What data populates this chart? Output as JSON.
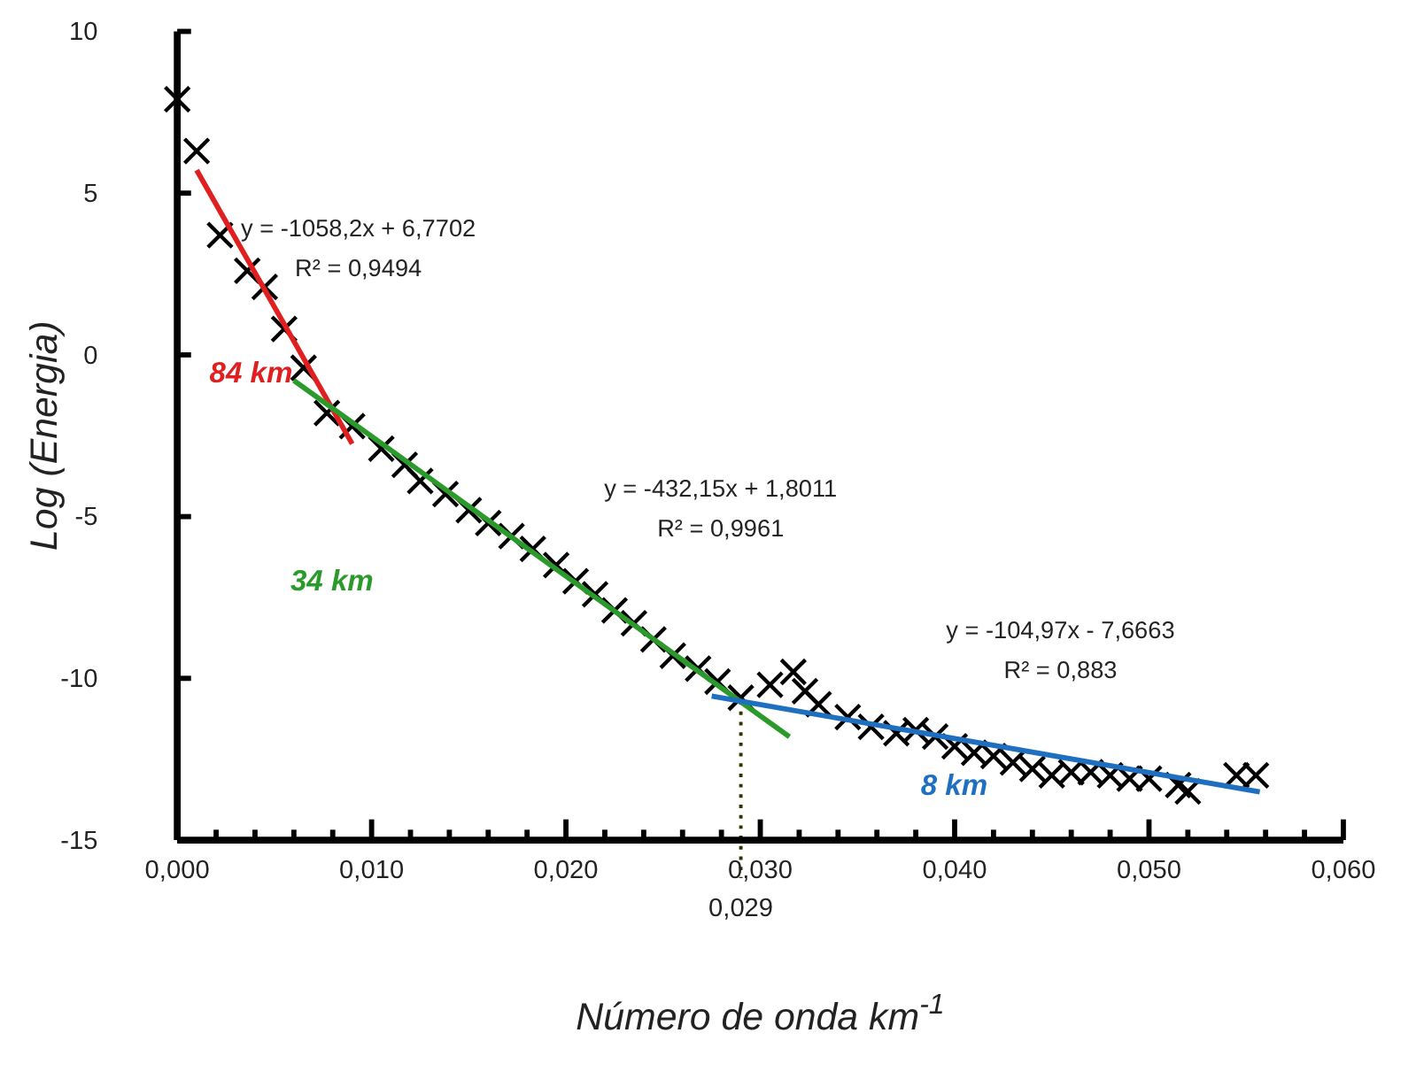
{
  "chart_data": {
    "type": "scatter",
    "xlabel": "Número de onda  km$^{-1}$",
    "ylabel": "Log (Energia)",
    "xlim": [
      0,
      0.06
    ],
    "ylim": [
      -15,
      10
    ],
    "xticks": [
      {
        "value": 0,
        "label": "0,000"
      },
      {
        "value": 0.002,
        "label": null
      },
      {
        "value": 0.004,
        "label": null
      },
      {
        "value": 0.006,
        "label": null
      },
      {
        "value": 0.008,
        "label": null
      },
      {
        "value": 0.01,
        "label": "0,010"
      },
      {
        "value": 0.012,
        "label": null
      },
      {
        "value": 0.014,
        "label": null
      },
      {
        "value": 0.016,
        "label": null
      },
      {
        "value": 0.018,
        "label": null
      },
      {
        "value": 0.02,
        "label": "0,020"
      },
      {
        "value": 0.022,
        "label": null
      },
      {
        "value": 0.024,
        "label": null
      },
      {
        "value": 0.026,
        "label": null
      },
      {
        "value": 0.028,
        "label": null
      },
      {
        "value": 0.03,
        "label": "0,030"
      },
      {
        "value": 0.032,
        "label": null
      },
      {
        "value": 0.034,
        "label": null
      },
      {
        "value": 0.036,
        "label": null
      },
      {
        "value": 0.038,
        "label": null
      },
      {
        "value": 0.04,
        "label": "0,040"
      },
      {
        "value": 0.042,
        "label": null
      },
      {
        "value": 0.044,
        "label": null
      },
      {
        "value": 0.046,
        "label": null
      },
      {
        "value": 0.048,
        "label": null
      },
      {
        "value": 0.05,
        "label": "0,050"
      },
      {
        "value": 0.052,
        "label": null
      },
      {
        "value": 0.054,
        "label": null
      },
      {
        "value": 0.056,
        "label": null
      },
      {
        "value": 0.058,
        "label": null
      },
      {
        "value": 0.06,
        "label": "0,060"
      }
    ],
    "yticks": [
      10,
      5,
      0,
      -5,
      -10,
      -15
    ],
    "grid": false,
    "series": [
      {
        "marker": "cross",
        "color": "#000000",
        "x": [
          0,
          0.001,
          0.0022,
          0.0036,
          0.0045,
          0.0055,
          0.0065,
          0.0077,
          0.009,
          0.0105,
          0.0117,
          0.0125,
          0.0138,
          0.015,
          0.016,
          0.0172,
          0.0183,
          0.0195,
          0.0205,
          0.0215,
          0.0225,
          0.0235,
          0.0245,
          0.0255,
          0.0268,
          0.0278,
          0.029,
          0.0305,
          0.0317,
          0.0323,
          0.033,
          0.0345,
          0.0357,
          0.037,
          0.038,
          0.039,
          0.04,
          0.041,
          0.042,
          0.043,
          0.044,
          0.045,
          0.046,
          0.047,
          0.048,
          0.049,
          0.05,
          0.0515,
          0.052,
          0.0545,
          0.0555
        ],
        "values": [
          7.9,
          6.3,
          3.7,
          2.6,
          2.1,
          0.8,
          -0.4,
          -1.8,
          -2.2,
          -2.9,
          -3.4,
          -3.9,
          -4.3,
          -4.8,
          -5.2,
          -5.6,
          -6,
          -6.5,
          -7,
          -7.4,
          -7.9,
          -8.3,
          -8.8,
          -9.3,
          -9.7,
          -10.1,
          -10.6,
          -10.2,
          -9.8,
          -10.4,
          -10.8,
          -11.2,
          -11.5,
          -11.7,
          -11.6,
          -11.8,
          -12.1,
          -12.3,
          -12.4,
          -12.6,
          -12.8,
          -13,
          -12.9,
          -12.9,
          -13,
          -13.1,
          -13.1,
          -13.3,
          -13.5,
          -13,
          -13
        ]
      },
      {
        "type": "line",
        "name": "84 km",
        "color": "#e02020",
        "x": [
          0.001,
          0.009
        ],
        "values": [
          5.71,
          -2.75
        ]
      },
      {
        "type": "line",
        "name": "34 km",
        "color": "#2a9a2a",
        "x": [
          0.006,
          0.0315
        ],
        "values": [
          -0.79,
          -11.81
        ]
      },
      {
        "type": "line",
        "name": "8 km",
        "color": "#1f6fc0",
        "x": [
          0.0275,
          0.0557
        ],
        "values": [
          -10.55,
          -13.51
        ]
      }
    ],
    "ref_lines": [
      {
        "axis": "x",
        "value": 0.029,
        "label": "0,029",
        "line_style": "dotted",
        "color": "#333300"
      }
    ],
    "annotations": [
      "y = -1058,2x + 6,7702",
      "R² = 0,9494",
      "y = -432,15x + 1,8011",
      "R² = 0,9961",
      "y = -104,97x - 7,6663",
      "R² = 0,883"
    ]
  }
}
